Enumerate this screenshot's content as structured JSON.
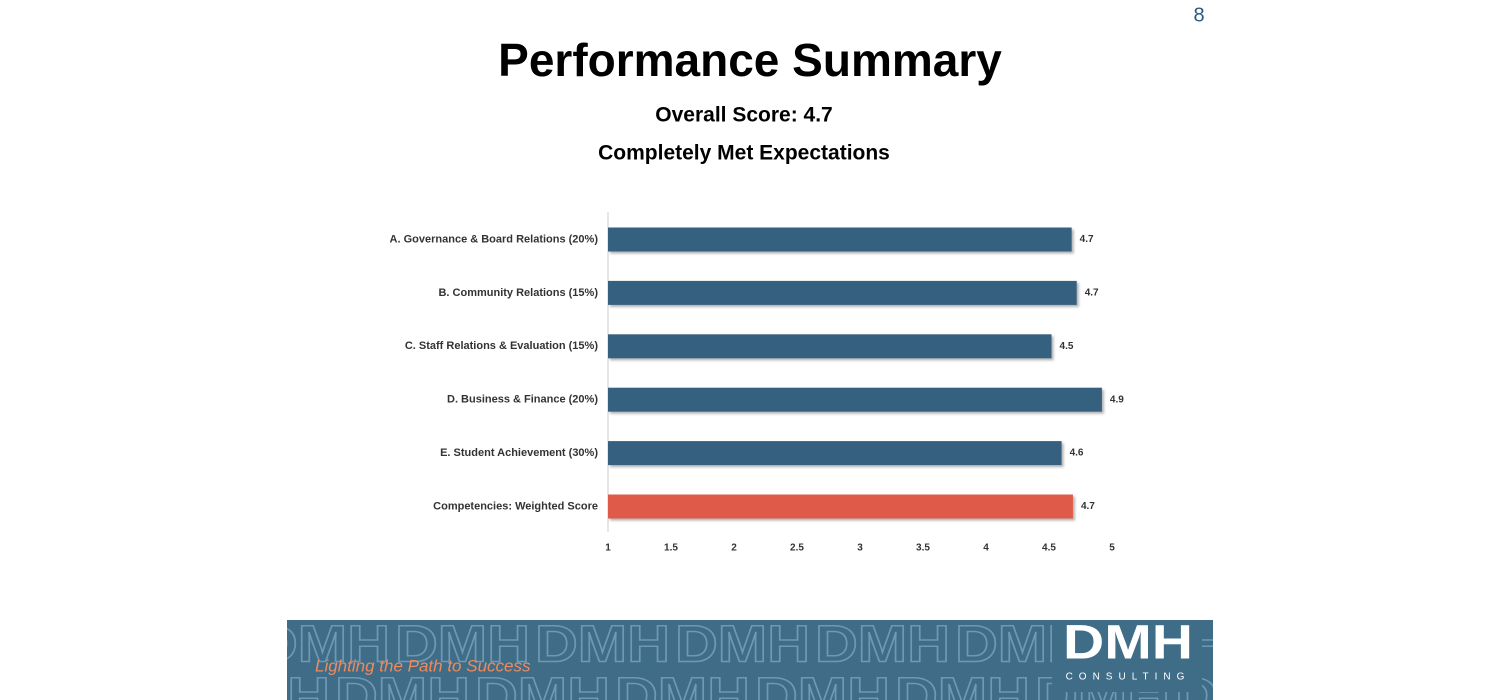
{
  "page_number": "8",
  "title": "Performance Summary",
  "subtitle_lines": [
    "Overall Score: 4.7",
    "Completely Met Expectations"
  ],
  "chart_data": {
    "type": "bar",
    "orientation": "horizontal",
    "categories": [
      "A. Governance & Board Relations (20%)",
      "B. Community Relations (15%)",
      "C. Staff Relations & Evaluation (15%)",
      "D. Business & Finance (20%)",
      "E. Student Achievement (30%)",
      "Competencies: Weighted Score"
    ],
    "values": [
      4.68,
      4.72,
      4.52,
      4.92,
      4.6,
      4.69
    ],
    "value_labels": [
      "4.7",
      "4.7",
      "4.5",
      "4.9",
      "4.6",
      "4.7"
    ],
    "colors": [
      "#35607f",
      "#35607f",
      "#35607f",
      "#35607f",
      "#35607f",
      "#e05a4a"
    ],
    "xlim": [
      1,
      5
    ],
    "xticks": [
      1,
      1.5,
      2,
      2.5,
      3,
      3.5,
      4,
      4.5,
      5
    ],
    "grid": false
  },
  "footer": {
    "tagline": "Lighting the Path to Success",
    "logo": "DMH",
    "logo_subtitle": "CONSULTING"
  }
}
